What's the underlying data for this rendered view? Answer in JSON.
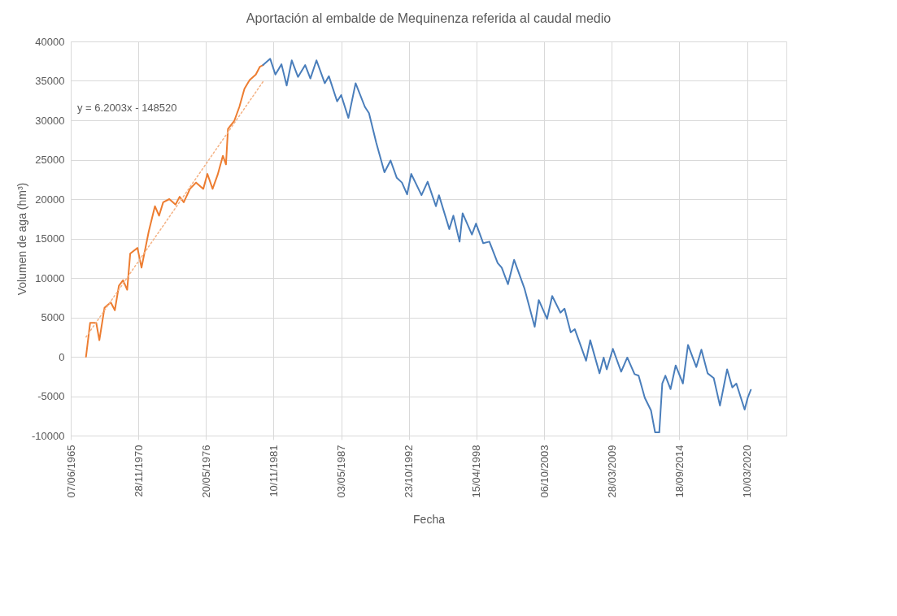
{
  "chart_data": {
    "type": "line",
    "title": "Aportación al embalde de Mequinenza referida al caudal medio",
    "xlabel": "Fecha",
    "ylabel": "Volumen de aga (hm³)",
    "annotations": [
      "y = 6.2003x - 148520"
    ],
    "xlim": [
      "1965-06-07",
      "2023-05-20"
    ],
    "ylim": [
      -10000,
      40000
    ],
    "xticks": [
      {
        "value": "1965-06-07",
        "label": "07/06/1965"
      },
      {
        "value": "1970-11-28",
        "label": "28/11/1970"
      },
      {
        "value": "1976-05-20",
        "label": "20/05/1976"
      },
      {
        "value": "1981-11-10",
        "label": "10/11/1981"
      },
      {
        "value": "1987-05-03",
        "label": "03/05/1987"
      },
      {
        "value": "1992-10-23",
        "label": "23/10/1992"
      },
      {
        "value": "1998-04-15",
        "label": "15/04/1998"
      },
      {
        "value": "2003-10-06",
        "label": "06/10/2003"
      },
      {
        "value": "2009-03-28",
        "label": "28/03/2009"
      },
      {
        "value": "2014-09-18",
        "label": "18/09/2014"
      },
      {
        "value": "2020-03-10",
        "label": "10/03/2020"
      }
    ],
    "yticks": [
      -10000,
      -5000,
      0,
      5000,
      10000,
      15000,
      20000,
      25000,
      30000,
      35000,
      40000
    ],
    "grid": true,
    "series": [
      {
        "color": "#ed7d31",
        "x": [
          "1966-09",
          "1967-01",
          "1967-07",
          "1967-10",
          "1968-03",
          "1968-09",
          "1969-01",
          "1969-05",
          "1969-09",
          "1970-01",
          "1970-04",
          "1970-11",
          "1971-03",
          "1971-10",
          "1972-04",
          "1972-08",
          "1972-12",
          "1973-06",
          "1973-12",
          "1974-04",
          "1974-08",
          "1975-02",
          "1975-08",
          "1976-03",
          "1976-07",
          "1976-12",
          "1977-05",
          "1977-10",
          "1978-01",
          "1978-03",
          "1978-09",
          "1979-02",
          "1979-07",
          "1979-12",
          "1980-06",
          "1980-10",
          "1981-01"
        ],
        "values": [
          0,
          4300,
          4300,
          2100,
          6200,
          6900,
          5900,
          9000,
          9700,
          8500,
          13100,
          13800,
          11300,
          15900,
          19100,
          17900,
          19600,
          20000,
          19300,
          20300,
          19600,
          21300,
          22100,
          21300,
          23200,
          21300,
          23100,
          25500,
          24400,
          28900,
          29900,
          31700,
          34000,
          35100,
          35800,
          36800,
          37000
        ]
      },
      {
        "color": "#4a7ebb",
        "x": [
          "1981-01",
          "1981-08",
          "1982-01",
          "1982-07",
          "1982-12",
          "1983-05",
          "1983-11",
          "1984-06",
          "1984-11",
          "1985-05",
          "1986-01",
          "1986-05",
          "1987-01",
          "1987-05",
          "1987-12",
          "1988-07",
          "1989-04",
          "1989-08",
          "1990-03",
          "1990-11",
          "1991-05",
          "1991-11",
          "1992-04",
          "1992-09",
          "1993-01",
          "1993-11",
          "1994-05",
          "1995-01",
          "1995-04",
          "1996-02",
          "1996-06",
          "1996-12",
          "1997-03",
          "1997-12",
          "1998-04",
          "1998-11",
          "1999-05",
          "2000-01",
          "2000-05",
          "2000-11",
          "2001-05",
          "2002-03",
          "2003-01",
          "2003-05",
          "2004-01",
          "2004-06",
          "2005-02",
          "2005-06",
          "2005-12",
          "2006-04",
          "2007-03",
          "2007-07",
          "2008-04",
          "2008-08",
          "2008-11",
          "2009-05",
          "2010-01",
          "2010-07",
          "2011-02",
          "2011-06",
          "2011-12",
          "2012-06",
          "2012-10",
          "2013-02",
          "2013-05",
          "2013-08",
          "2014-01",
          "2014-06",
          "2015-01",
          "2015-06",
          "2016-02",
          "2016-07",
          "2017-01",
          "2017-07",
          "2018-01",
          "2018-08",
          "2019-01",
          "2019-05",
          "2020-01",
          "2020-04",
          "2020-07"
        ],
        "values": [
          37000,
          37800,
          35800,
          37100,
          34400,
          37600,
          35500,
          37000,
          35300,
          37600,
          34700,
          35600,
          32400,
          33200,
          30300,
          34700,
          31700,
          30900,
          27200,
          23400,
          24900,
          22700,
          22100,
          20600,
          23200,
          20500,
          22200,
          19100,
          20500,
          16200,
          17900,
          14600,
          18200,
          15500,
          16900,
          14400,
          14600,
          11900,
          11300,
          9200,
          12300,
          8700,
          3800,
          7200,
          4800,
          7700,
          5600,
          6100,
          3100,
          3500,
          -500,
          2100,
          -2100,
          -100,
          -1600,
          1000,
          -1900,
          -100,
          -2200,
          -2400,
          -5200,
          -6800,
          -9600,
          -9600,
          -3400,
          -2400,
          -4100,
          -1100,
          -3400,
          1500,
          -1300,
          900,
          -2100,
          -2700,
          -6200,
          -1600,
          -3900,
          -3400,
          -6700,
          -5200,
          -4200
        ]
      },
      {
        "color": "#f4b183",
        "line_style": "dotted",
        "x": [
          "1966-09",
          "1981-01"
        ],
        "values": [
          2500,
          34900
        ]
      }
    ]
  }
}
